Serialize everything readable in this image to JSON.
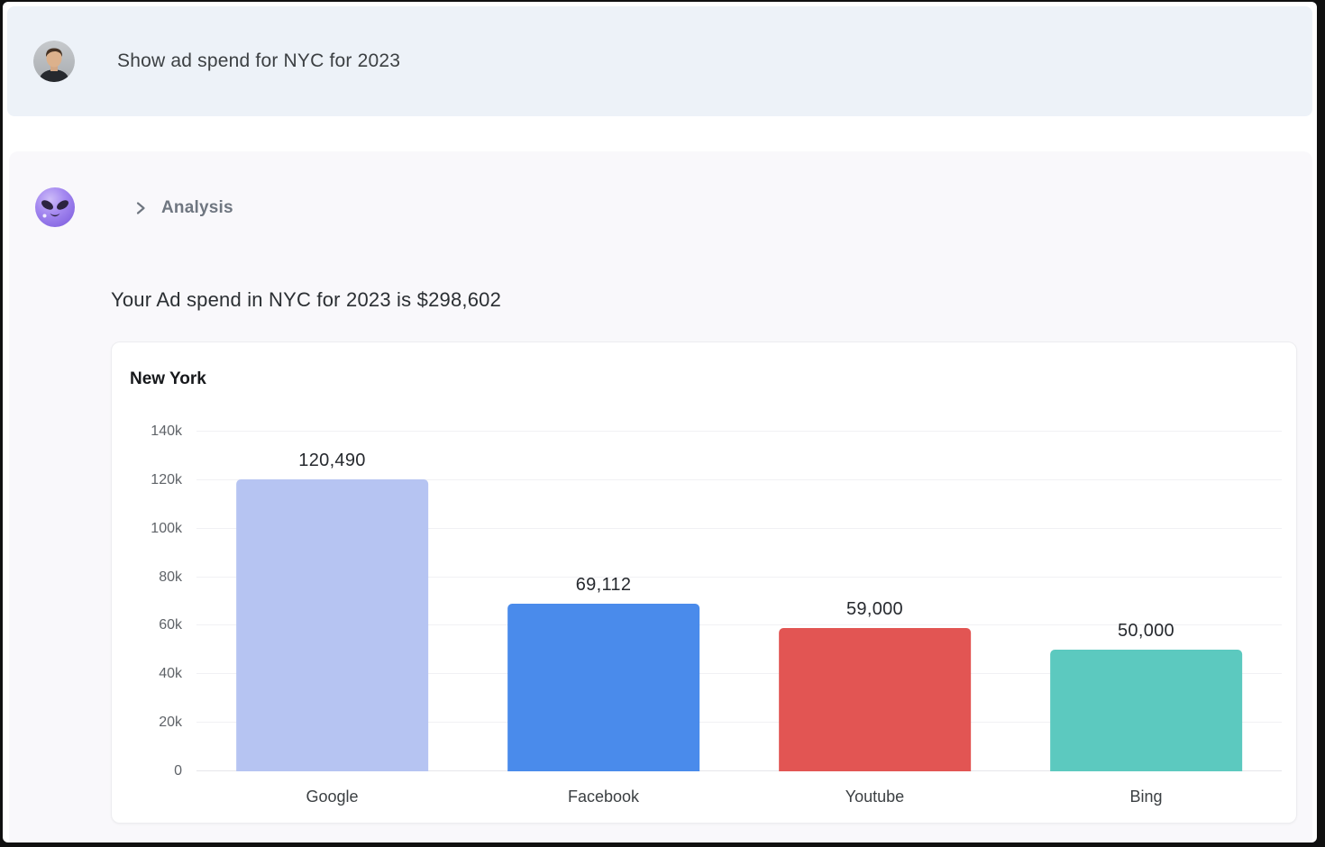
{
  "colors": {
    "frame": "#101010",
    "user_band_bg": "#edf2f8",
    "assistant_band_bg": "#f9f8fb",
    "card_bg": "#ffffff",
    "card_border": "#ededf0",
    "grid_line": "#f1f1f4",
    "text_dark": "#2b2f33",
    "text_gray": "#6f7680",
    "axis_label_color": "#5f6368"
  },
  "user_message": {
    "avatar": "user-photo-avatar",
    "text": "Show ad spend for NYC for 2023"
  },
  "assistant_message": {
    "avatar": "alien-emoji-avatar",
    "disclosure": {
      "icon": "chevron-right-icon",
      "label": "Analysis"
    },
    "summary": "Your Ad spend in NYC for 2023 is $298,602"
  },
  "chart_data": {
    "type": "bar",
    "title": "New York",
    "categories": [
      "Google",
      "Facebook",
      "Youtube",
      "Bing"
    ],
    "values": [
      120490,
      69112,
      59000,
      50000
    ],
    "value_labels": [
      "120,490",
      "69,112",
      "59,000",
      "50,000"
    ],
    "bar_colors": [
      "#b6c4f2",
      "#4a8beb",
      "#e25553",
      "#5cc9bf"
    ],
    "xlabel": "",
    "ylabel": "",
    "ylim": [
      0,
      140000
    ],
    "yticks": [
      {
        "label": "140k",
        "value": 140000
      },
      {
        "label": "120k",
        "value": 120000
      },
      {
        "label": "100k",
        "value": 100000
      },
      {
        "label": "80k",
        "value": 80000
      },
      {
        "label": "60k",
        "value": 60000
      },
      {
        "label": "40k",
        "value": 40000
      },
      {
        "label": "20k",
        "value": 20000
      },
      {
        "label": "0",
        "value": 0
      }
    ],
    "grid": true,
    "legend": false,
    "data_labels": true
  }
}
